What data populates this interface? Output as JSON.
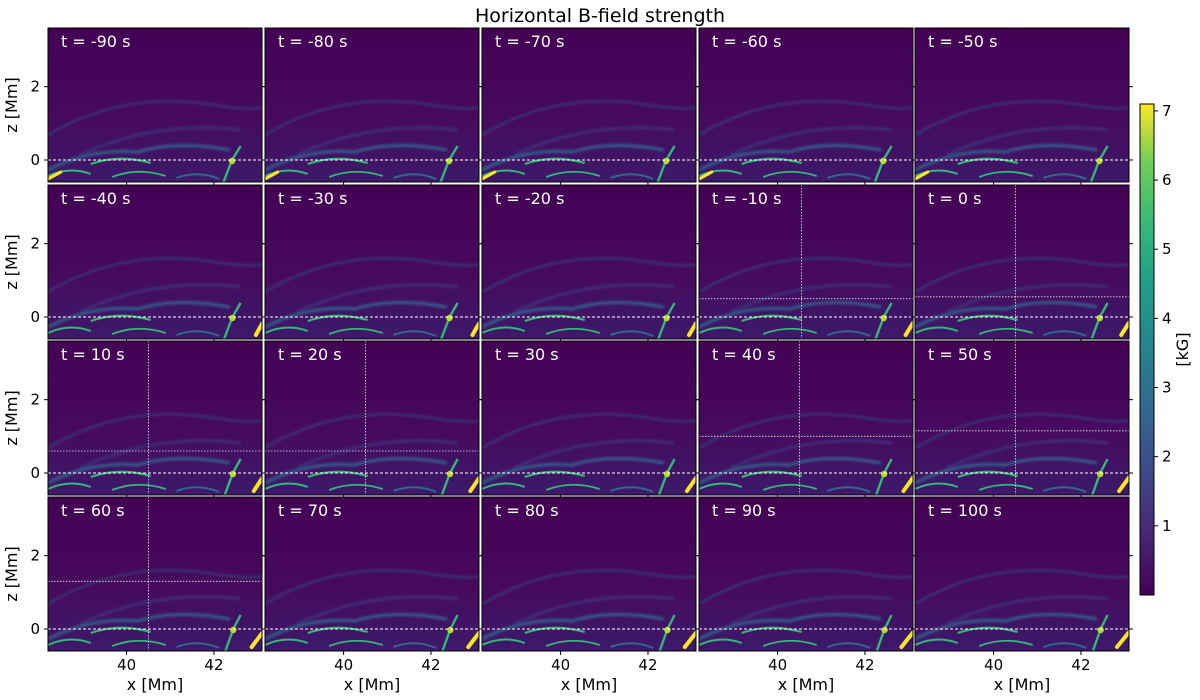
{
  "figure": {
    "title": "Horizontal B-field strength"
  },
  "chart_data": {
    "type": "heatmap",
    "title": "Horizontal B-field strength",
    "xlabel": "x [Mm]",
    "ylabel": "z [Mm]",
    "xlim": [
      38.2,
      43.1
    ],
    "ylim": [
      -0.6,
      3.6
    ],
    "xticks": [
      40,
      42
    ],
    "yticks": [
      0,
      2
    ],
    "colorbar": {
      "label": "[kG]",
      "range": [
        0,
        7.1
      ],
      "ticks": [
        1,
        2,
        3,
        4,
        5,
        6,
        7
      ],
      "colormap": "viridis"
    },
    "reference_line_z": 0,
    "panels": [
      {
        "label": "t = -90 s",
        "t": -90
      },
      {
        "label": "t = -80 s",
        "t": -80
      },
      {
        "label": "t = -70 s",
        "t": -70
      },
      {
        "label": "t = -60 s",
        "t": -60
      },
      {
        "label": "t = -50 s",
        "t": -50
      },
      {
        "label": "t = -40 s",
        "t": -40
      },
      {
        "label": "t = -30 s",
        "t": -30
      },
      {
        "label": "t = -20 s",
        "t": -20
      },
      {
        "label": "t = -10 s",
        "t": -10,
        "cross_x": 40.55,
        "cross_z": 0.5
      },
      {
        "label": "t = 0 s",
        "t": 0,
        "cross_x": 40.5,
        "cross_z": 0.55
      },
      {
        "label": "t = 10 s",
        "t": 10,
        "cross_x": 40.5,
        "cross_z": 0.6
      },
      {
        "label": "t = 20 s",
        "t": 20,
        "cross_x": 40.5,
        "cross_z": 0.6
      },
      {
        "label": "t = 30 s",
        "t": 30
      },
      {
        "label": "t = 40 s",
        "t": 40,
        "cross_x": 40.5,
        "cross_z": 1.0
      },
      {
        "label": "t = 50 s",
        "t": 50,
        "cross_x": 40.5,
        "cross_z": 1.15
      },
      {
        "label": "t = 60 s",
        "t": 60,
        "cross_x": 40.5,
        "cross_z": 1.3
      },
      {
        "label": "t = 70 s",
        "t": 70
      },
      {
        "label": "t = 80 s",
        "t": 80
      },
      {
        "label": "t = 90 s",
        "t": 90
      },
      {
        "label": "t = 100 s",
        "t": 100
      }
    ]
  },
  "colors": {
    "background": "#440154",
    "mid": "#31688e",
    "green": "#35b779",
    "yellow": "#fde725",
    "overlay_line": "#ffffff"
  }
}
